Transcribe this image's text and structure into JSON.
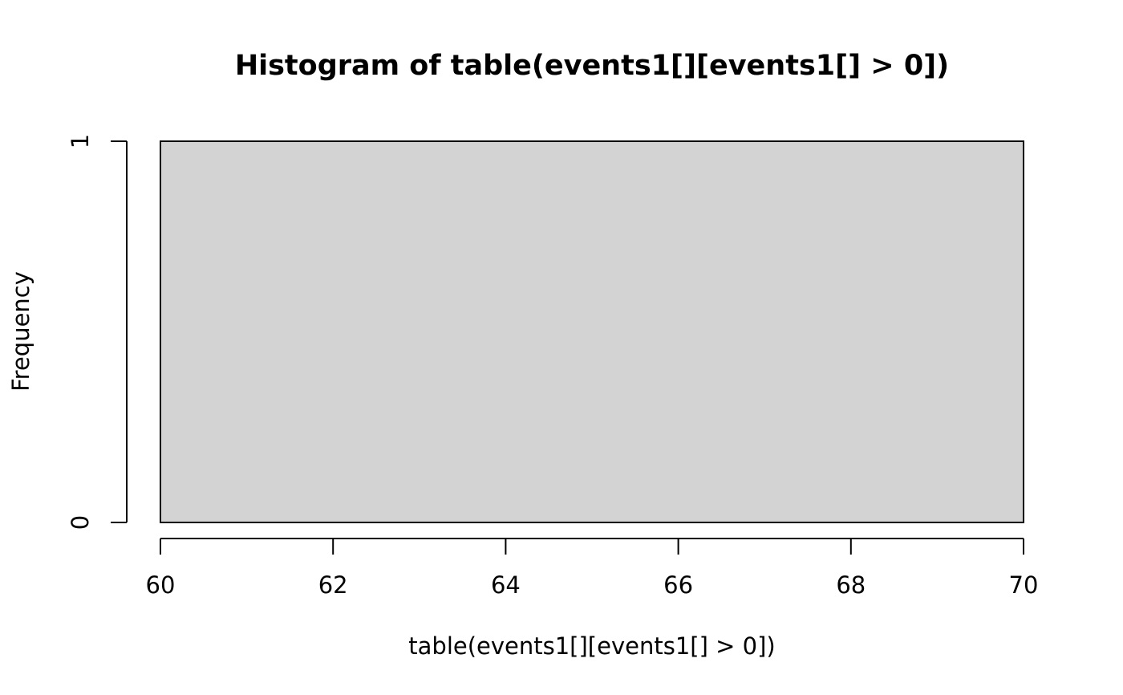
{
  "chart_data": {
    "type": "bar",
    "subtype": "histogram",
    "title": "Histogram of table(events1[][events1[] > 0])",
    "xlabel": "table(events1[][events1[] > 0])",
    "ylabel": "Frequency",
    "xlim": [
      60,
      70
    ],
    "ylim": [
      0,
      1
    ],
    "x_ticks": [
      60,
      62,
      64,
      66,
      68,
      70
    ],
    "y_ticks": [
      0,
      1
    ],
    "bins": [
      {
        "start": 60,
        "end": 70,
        "count": 1
      }
    ],
    "bar_color": "#d3d3d3",
    "grid": false,
    "legend": false
  }
}
